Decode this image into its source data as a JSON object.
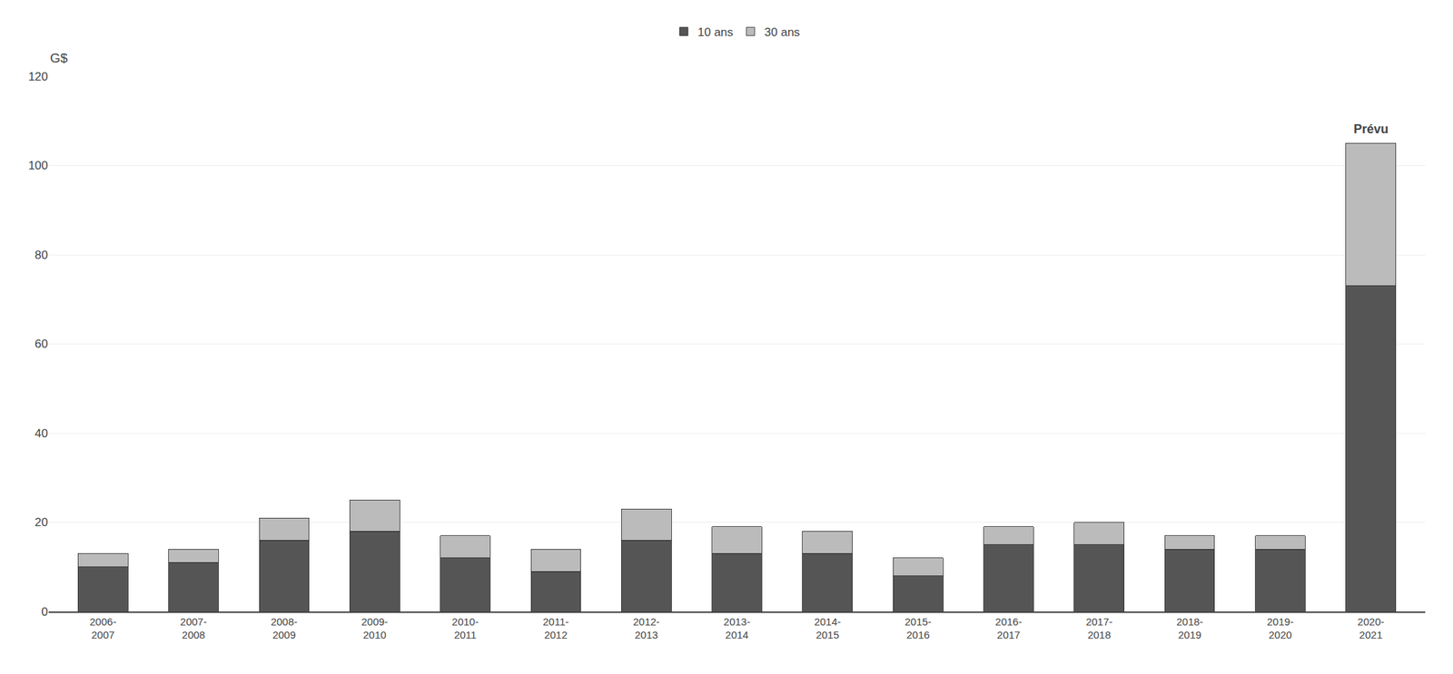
{
  "chart_data": {
    "type": "bar",
    "stacked": true,
    "ylabel": "G$",
    "categories": [
      "2006-\n2007",
      "2007-\n2008",
      "2008-\n2009",
      "2009-\n2010",
      "2010-\n2011",
      "2011-\n2012",
      "2012-\n2013",
      "2013-\n2014",
      "2014-\n2015",
      "2015-\n2016",
      "2016-\n2017",
      "2017-\n2018",
      "2018-\n2019",
      "2019-\n2020",
      "2020-\n2021"
    ],
    "series": [
      {
        "name": "10 ans",
        "color": "#555555",
        "values": [
          10,
          11,
          16,
          18,
          12,
          9,
          16,
          13,
          13,
          8,
          15,
          15,
          14,
          14,
          73
        ]
      },
      {
        "name": "30 ans",
        "color": "#bbbbbb",
        "values": [
          3,
          3,
          5,
          7,
          5,
          5,
          7,
          6,
          5,
          4,
          4,
          5,
          3,
          3,
          32
        ]
      }
    ],
    "ylim": [
      0,
      120
    ],
    "yticks": [
      0,
      20,
      40,
      60,
      80,
      100,
      120
    ],
    "grid": true,
    "legend": "top",
    "annotations": [
      {
        "text": "Prévu",
        "x": "2020-\n2021"
      }
    ]
  }
}
